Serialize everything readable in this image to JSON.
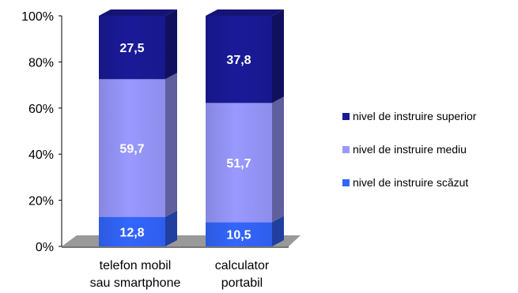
{
  "chart_data": {
    "type": "bar",
    "stacked": true,
    "percent_stacked": true,
    "categories": [
      [
        "telefon mobil",
        "sau smartphone"
      ],
      [
        "calculator",
        "portabil"
      ]
    ],
    "series": [
      {
        "name": "nivel de instruire scăzut",
        "values": [
          12.8,
          10.5
        ],
        "labels": [
          "12,8",
          "10,5"
        ],
        "color": "#3366ff"
      },
      {
        "name": "nivel de instruire mediu",
        "values": [
          59.7,
          51.7
        ],
        "labels": [
          "59,7",
          "51,7"
        ],
        "color": "#9999ff"
      },
      {
        "name": "nivel de instruire superior",
        "values": [
          27.5,
          37.8
        ],
        "labels": [
          "27,5",
          "37,8"
        ],
        "color": "#1a1a99"
      }
    ],
    "y_ticks": [
      "0%",
      "20%",
      "40%",
      "60%",
      "80%",
      "100%"
    ],
    "ylim": [
      0,
      100
    ],
    "legend_position": "right",
    "grid": false
  },
  "legend": {
    "items": [
      {
        "label": "nivel de instruire superior",
        "color": "#1a1a99"
      },
      {
        "label": "nivel de instruire mediu",
        "color": "#9999ff"
      },
      {
        "label": "nivel de instruire scăzut",
        "color": "#3366ff"
      }
    ]
  }
}
